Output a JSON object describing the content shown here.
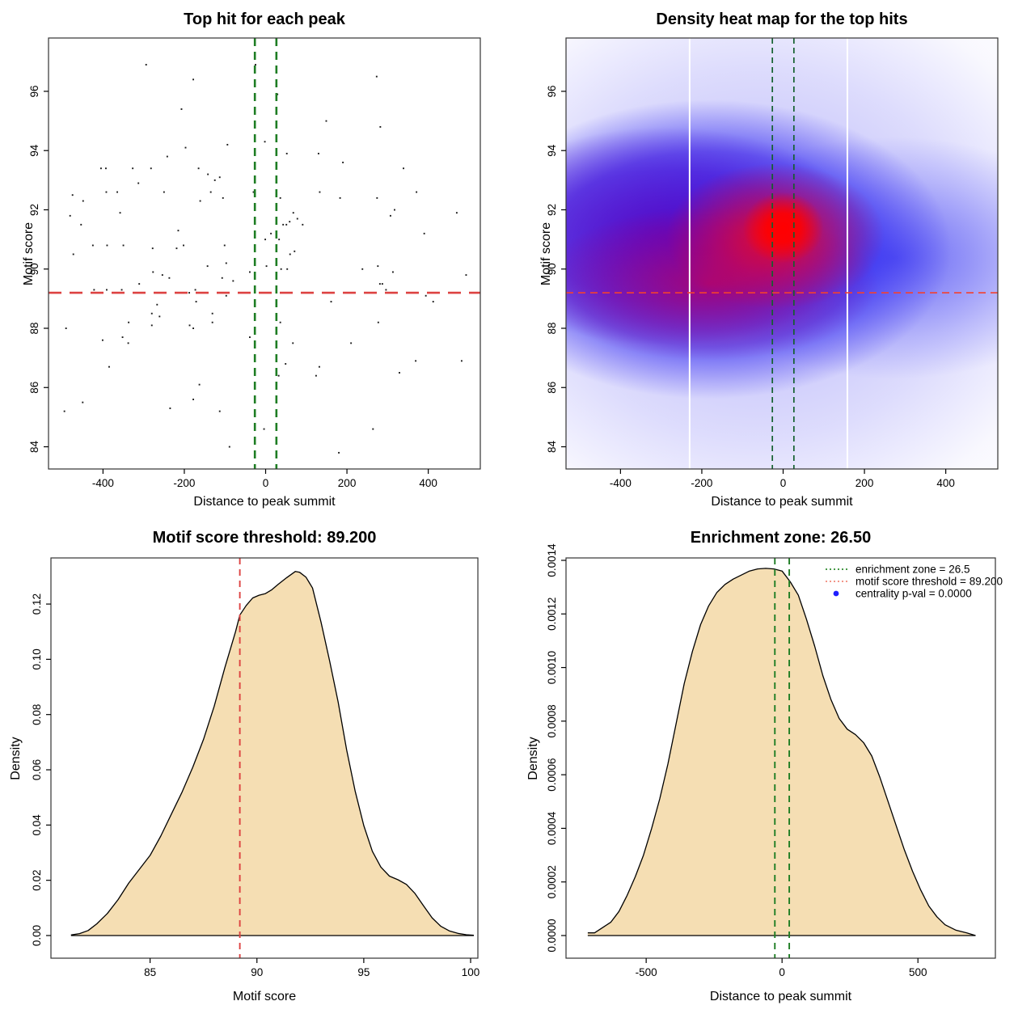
{
  "accent_colors": {
    "threshold_red": "#dd4241",
    "heatmap_red_dash": "#f4412f",
    "zone_green": "#1e7d23",
    "heatmap_green_dash": "#14602f",
    "legend_green": "#2e8b2e",
    "legend_salmon": "#f08878",
    "legend_blue": "#1f1fff",
    "density_fill": "#f5deb3",
    "point_color": "#1a1a1a",
    "heatmap_palette": [
      "#ffffff",
      "#4646f0",
      "#5a00b4",
      "#c3005a",
      "#ff0000"
    ]
  },
  "chart_data": [
    {
      "type": "scatter",
      "title": "Top hit for each peak",
      "xlabel": "Distance to peak summit",
      "ylabel": "Motif score",
      "xlim": [
        -534,
        528
      ],
      "ylim": [
        83.25,
        97.8
      ],
      "xticks": {
        "values": [
          -400,
          -200,
          0,
          200,
          400
        ],
        "labels": [
          "-400",
          "-200",
          "0",
          "200",
          "400"
        ]
      },
      "yticks": {
        "values": [
          84,
          86,
          88,
          90,
          92,
          94,
          96
        ],
        "labels": [
          "84",
          "86",
          "88",
          "90",
          "92",
          "94",
          "96"
        ]
      },
      "hline_motif_threshold": 89.2,
      "vlines_enrichment_zone": [
        -26.5,
        26.5
      ],
      "points": [
        [
          -294,
          96.9
        ],
        [
          -178,
          96.4
        ],
        [
          -207,
          95.4
        ],
        [
          -25,
          96.9
        ],
        [
          -197,
          94.1
        ],
        [
          -94,
          94.2
        ],
        [
          -2,
          94.3
        ],
        [
          -242,
          93.8
        ],
        [
          -405,
          93.4
        ],
        [
          -393,
          93.4
        ],
        [
          -327,
          93.4
        ],
        [
          -282,
          93.4
        ],
        [
          -165,
          93.4
        ],
        [
          -142,
          93.2
        ],
        [
          -113,
          93.1
        ],
        [
          -125,
          93.0
        ],
        [
          -313,
          92.9
        ],
        [
          -475,
          92.5
        ],
        [
          -449,
          92.3
        ],
        [
          -392,
          92.6
        ],
        [
          -365,
          92.6
        ],
        [
          -250,
          92.6
        ],
        [
          -135,
          92.6
        ],
        [
          -30,
          92.6
        ],
        [
          -161,
          92.3
        ],
        [
          -105,
          92.4
        ],
        [
          -481,
          91.8
        ],
        [
          -454,
          91.5
        ],
        [
          -358,
          91.9
        ],
        [
          -215,
          91.3
        ],
        [
          -1,
          91.0
        ],
        [
          -202,
          90.8
        ],
        [
          -278,
          90.7
        ],
        [
          -219,
          90.7
        ],
        [
          -425,
          90.8
        ],
        [
          -390,
          90.8
        ],
        [
          -350,
          90.8
        ],
        [
          -473,
          90.5
        ],
        [
          -101,
          90.8
        ],
        [
          273,
          96.5
        ],
        [
          29,
          95.9
        ],
        [
          149,
          95.0
        ],
        [
          282,
          94.8
        ],
        [
          52,
          93.9
        ],
        [
          130,
          93.9
        ],
        [
          190,
          93.6
        ],
        [
          339,
          93.4
        ],
        [
          133,
          92.6
        ],
        [
          36,
          92.4
        ],
        [
          183,
          92.4
        ],
        [
          274,
          92.4
        ],
        [
          371,
          92.6
        ],
        [
          317,
          92.0
        ],
        [
          307,
          91.8
        ],
        [
          470,
          91.9
        ],
        [
          68,
          91.9
        ],
        [
          78,
          91.7
        ],
        [
          59,
          91.6
        ],
        [
          43,
          91.5
        ],
        [
          51,
          91.5
        ],
        [
          91,
          91.5
        ],
        [
          390,
          91.2
        ],
        [
          13,
          91.2
        ],
        [
          33,
          91.0
        ],
        [
          60,
          90.5
        ],
        [
          -422,
          89.3
        ],
        [
          -391,
          89.3
        ],
        [
          -354,
          89.3
        ],
        [
          -311,
          89.5
        ],
        [
          -188,
          89.2
        ],
        [
          -173,
          89.3
        ],
        [
          -97,
          89.1
        ],
        [
          -171,
          88.9
        ],
        [
          -143,
          90.1
        ],
        [
          -97,
          90.2
        ],
        [
          -277,
          89.9
        ],
        [
          -254,
          89.8
        ],
        [
          -237,
          89.7
        ],
        [
          -107,
          89.7
        ],
        [
          -80,
          89.6
        ],
        [
          -39,
          89.9
        ],
        [
          2,
          90.1
        ],
        [
          -267,
          88.8
        ],
        [
          -280,
          88.5
        ],
        [
          -261,
          88.4
        ],
        [
          -337,
          88.2
        ],
        [
          -280,
          88.1
        ],
        [
          -131,
          88.5
        ],
        [
          -131,
          88.2
        ],
        [
          -187,
          88.1
        ],
        [
          -178,
          88.0
        ],
        [
          -491,
          88.0
        ],
        [
          -352,
          87.7
        ],
        [
          -338,
          87.5
        ],
        [
          -401,
          87.6
        ],
        [
          -39,
          87.7
        ],
        [
          -385,
          86.7
        ],
        [
          -163,
          86.1
        ],
        [
          -178,
          85.6
        ],
        [
          -450,
          85.5
        ],
        [
          -495,
          85.2
        ],
        [
          -235,
          85.3
        ],
        [
          -113,
          85.2
        ],
        [
          -89,
          84.0
        ],
        [
          -4,
          84.6
        ],
        [
          71,
          90.6
        ],
        [
          38,
          90.0
        ],
        [
          53,
          90.0
        ],
        [
          238,
          90.0
        ],
        [
          276,
          90.1
        ],
        [
          313,
          89.9
        ],
        [
          493,
          89.8
        ],
        [
          281,
          89.5
        ],
        [
          287,
          89.5
        ],
        [
          296,
          89.3
        ],
        [
          394,
          89.1
        ],
        [
          412,
          88.9
        ],
        [
          161,
          88.9
        ],
        [
          277,
          88.2
        ],
        [
          36,
          88.2
        ],
        [
          67,
          87.5
        ],
        [
          210,
          87.5
        ],
        [
          49,
          86.8
        ],
        [
          132,
          86.7
        ],
        [
          369,
          86.9
        ],
        [
          482,
          86.9
        ],
        [
          329,
          86.5
        ],
        [
          32,
          86.4
        ],
        [
          124,
          86.4
        ],
        [
          264,
          84.6
        ],
        [
          180,
          83.8
        ]
      ]
    },
    {
      "type": "heatmap",
      "title": "Density heat map for the top hits",
      "xlabel": "Distance to peak summit",
      "ylabel": "Motif score",
      "xlim": [
        -534,
        528
      ],
      "ylim": [
        83.25,
        97.8
      ],
      "xticks": {
        "values": [
          -400,
          -200,
          0,
          200,
          400
        ],
        "labels": [
          "-400",
          "-200",
          "0",
          "200",
          "400"
        ]
      },
      "yticks": {
        "values": [
          84,
          86,
          88,
          90,
          92,
          94,
          96
        ],
        "labels": [
          "84",
          "86",
          "88",
          "90",
          "92",
          "94",
          "96"
        ]
      },
      "hline_motif_threshold": 89.2,
      "vlines_enrichment_zone": [
        -26.5,
        26.5
      ],
      "white_gridlines_x": [
        -230,
        158
      ],
      "hotspots": [
        {
          "x": 0,
          "y": 91.4,
          "intensity": "maximum"
        },
        {
          "x": -200,
          "y": 89.3,
          "intensity": "high"
        }
      ]
    },
    {
      "type": "area",
      "title": "Motif score threshold: 89.200",
      "xlabel": "Motif score",
      "ylabel": "Density",
      "xlim": [
        80.36,
        100.34
      ],
      "ylim": [
        -0.0082,
        0.1367
      ],
      "xticks": {
        "values": [
          85,
          90,
          95,
          100
        ],
        "labels": [
          "85",
          "90",
          "95",
          "100"
        ]
      },
      "yticks": {
        "values": [
          0.0,
          0.02,
          0.04,
          0.06,
          0.08,
          0.1,
          0.12
        ],
        "labels": [
          "0.00",
          "0.02",
          "0.04",
          "0.06",
          "0.08",
          "0.10",
          "0.12"
        ]
      },
      "vline_motif_threshold": 89.2,
      "curve": [
        [
          81.3,
          0.0002
        ],
        [
          81.7,
          0.0007
        ],
        [
          82.1,
          0.0018
        ],
        [
          82.5,
          0.0042
        ],
        [
          83,
          0.008
        ],
        [
          83.5,
          0.013
        ],
        [
          84,
          0.019
        ],
        [
          84.5,
          0.024
        ],
        [
          85,
          0.029
        ],
        [
          85.5,
          0.036
        ],
        [
          86,
          0.044
        ],
        [
          86.5,
          0.052
        ],
        [
          87,
          0.061
        ],
        [
          87.5,
          0.071
        ],
        [
          88,
          0.083
        ],
        [
          88.5,
          0.097
        ],
        [
          89,
          0.11
        ],
        [
          89.2,
          0.116
        ],
        [
          89.5,
          0.1195
        ],
        [
          89.8,
          0.1222
        ],
        [
          90.1,
          0.1232
        ],
        [
          90.4,
          0.1238
        ],
        [
          90.7,
          0.1252
        ],
        [
          91,
          0.1272
        ],
        [
          91.4,
          0.1296
        ],
        [
          91.8,
          0.1318
        ],
        [
          92,
          0.1315
        ],
        [
          92.3,
          0.1297
        ],
        [
          92.6,
          0.1258
        ],
        [
          93,
          0.1135
        ],
        [
          93.4,
          0.0995
        ],
        [
          93.8,
          0.0845
        ],
        [
          94.2,
          0.0672
        ],
        [
          94.6,
          0.0522
        ],
        [
          95,
          0.0398
        ],
        [
          95.4,
          0.0305
        ],
        [
          95.8,
          0.0248
        ],
        [
          96.2,
          0.0215
        ],
        [
          96.6,
          0.0202
        ],
        [
          97,
          0.0185
        ],
        [
          97.4,
          0.0152
        ],
        [
          97.8,
          0.0107
        ],
        [
          98.2,
          0.0064
        ],
        [
          98.6,
          0.0034
        ],
        [
          99,
          0.0017
        ],
        [
          99.4,
          0.0008
        ],
        [
          99.8,
          0.0003
        ],
        [
          100.15,
          0.0001
        ]
      ]
    },
    {
      "type": "area",
      "title": "Enrichment zone: 26.50",
      "xlabel": "Distance to peak summit",
      "ylabel": "Density",
      "xlim": [
        -795,
        785
      ],
      "ylim": [
        -8.45e-05,
        0.001409
      ],
      "xticks": {
        "values": [
          -500,
          0,
          500
        ],
        "labels": [
          "-500",
          "0",
          "500"
        ]
      },
      "yticks": {
        "values": [
          0.0,
          0.0002,
          0.0004,
          0.0006,
          0.0008,
          0.001,
          0.0012,
          0.0014
        ],
        "labels": [
          "0.0000",
          "0.0002",
          "0.0004",
          "0.0006",
          "0.0008",
          "0.0010",
          "0.0012",
          "0.0014"
        ]
      },
      "vlines_enrichment_zone": [
        -26.5,
        26.5
      ],
      "curve": [
        [
          -715,
          1e-05
        ],
        [
          -690,
          1e-05
        ],
        [
          -660,
          3e-05
        ],
        [
          -630,
          5e-05
        ],
        [
          -600,
          9e-05
        ],
        [
          -570,
          0.00015
        ],
        [
          -540,
          0.00022
        ],
        [
          -510,
          0.0003
        ],
        [
          -480,
          0.0004
        ],
        [
          -450,
          0.00051
        ],
        [
          -420,
          0.00064
        ],
        [
          -390,
          0.00079
        ],
        [
          -360,
          0.00094
        ],
        [
          -330,
          0.00106
        ],
        [
          -300,
          0.00116
        ],
        [
          -270,
          0.00123
        ],
        [
          -240,
          0.00128
        ],
        [
          -210,
          0.00131
        ],
        [
          -180,
          0.00133
        ],
        [
          -150,
          0.001345
        ],
        [
          -120,
          0.00136
        ],
        [
          -90,
          0.001368
        ],
        [
          -60,
          0.00137
        ],
        [
          -30,
          0.001368
        ],
        [
          0,
          0.00136
        ],
        [
          30,
          0.00132
        ],
        [
          60,
          0.00127
        ],
        [
          90,
          0.00118
        ],
        [
          120,
          0.00108
        ],
        [
          150,
          0.00097
        ],
        [
          180,
          0.00088
        ],
        [
          210,
          0.00081
        ],
        [
          240,
          0.00077
        ],
        [
          270,
          0.00075
        ],
        [
          300,
          0.00072
        ],
        [
          330,
          0.00067
        ],
        [
          360,
          0.00059
        ],
        [
          390,
          0.0005
        ],
        [
          420,
          0.00041
        ],
        [
          450,
          0.00032
        ],
        [
          480,
          0.00024
        ],
        [
          510,
          0.00017
        ],
        [
          540,
          0.00011
        ],
        [
          570,
          7e-05
        ],
        [
          600,
          4e-05
        ],
        [
          640,
          2e-05
        ],
        [
          680,
          1e-05
        ],
        [
          712,
          0
        ]
      ],
      "legend": {
        "items": [
          {
            "swatch": "dotted-line",
            "color": "#2e8b2e",
            "label": "enrichment zone = 26.5"
          },
          {
            "swatch": "dotted-line",
            "color": "#f08878",
            "label": "motif score threshold = 89.200"
          },
          {
            "swatch": "point",
            "color": "#1f1fff",
            "label": "centrality p-val = 0.0000"
          }
        ]
      }
    }
  ]
}
